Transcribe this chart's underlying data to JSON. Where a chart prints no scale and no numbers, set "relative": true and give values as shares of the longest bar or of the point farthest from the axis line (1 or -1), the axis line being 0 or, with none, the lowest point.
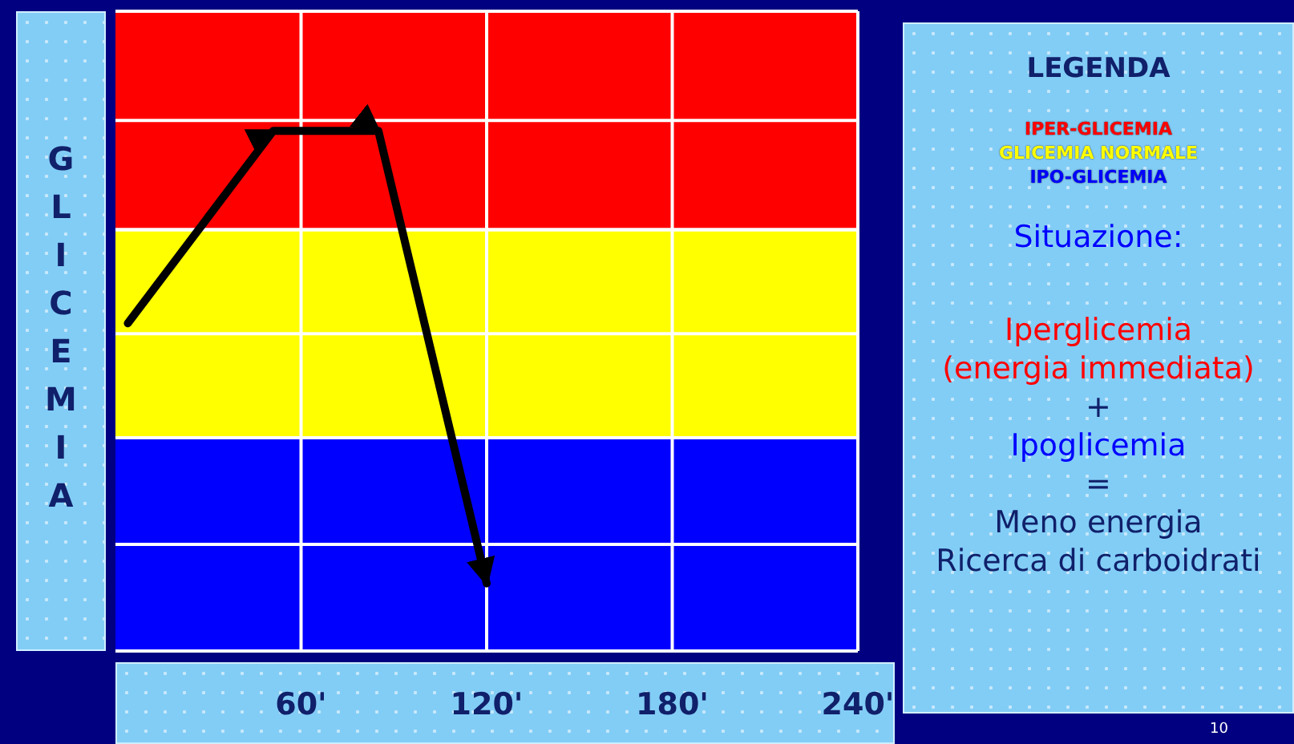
{
  "chart_data": {
    "type": "line",
    "relative": true,
    "ylabel": "GLICEMIA",
    "legend_title": "LEGENDA",
    "legend": "right",
    "grid": true,
    "marker": "none",
    "line_style": "solid",
    "x": [
      4,
      51,
      85,
      120
    ],
    "xlim": [
      0,
      240
    ],
    "xticks": [
      {
        "value": 60,
        "label": "60'"
      },
      {
        "value": 120,
        "label": "120'"
      },
      {
        "value": 180,
        "label": "180'"
      },
      {
        "value": 240,
        "label": "240'"
      }
    ],
    "series": [
      {
        "color": "#000000",
        "values": [
          0.63,
          1,
          1,
          0.13
        ]
      }
    ],
    "bands": [
      {
        "axis": "y",
        "from": 0.81,
        "to": 1.23,
        "label": "IPER-GLICEMIA",
        "color": "#ff0000"
      },
      {
        "axis": "y",
        "from": 0.41,
        "to": 0.81,
        "label": "GLICEMIA NORMALE",
        "color": "#ffff00"
      },
      {
        "axis": "y",
        "from": 0,
        "to": 0.41,
        "label": "IPO-GLICEMIA",
        "color": "#0000ff"
      }
    ],
    "annotations": [
      "Situazione:",
      "Iperglicemia",
      "(energia immediata)",
      "+",
      "Ipoglicemia",
      "=",
      "Meno energia",
      "Ricerca di carboidrati",
      "10"
    ]
  }
}
